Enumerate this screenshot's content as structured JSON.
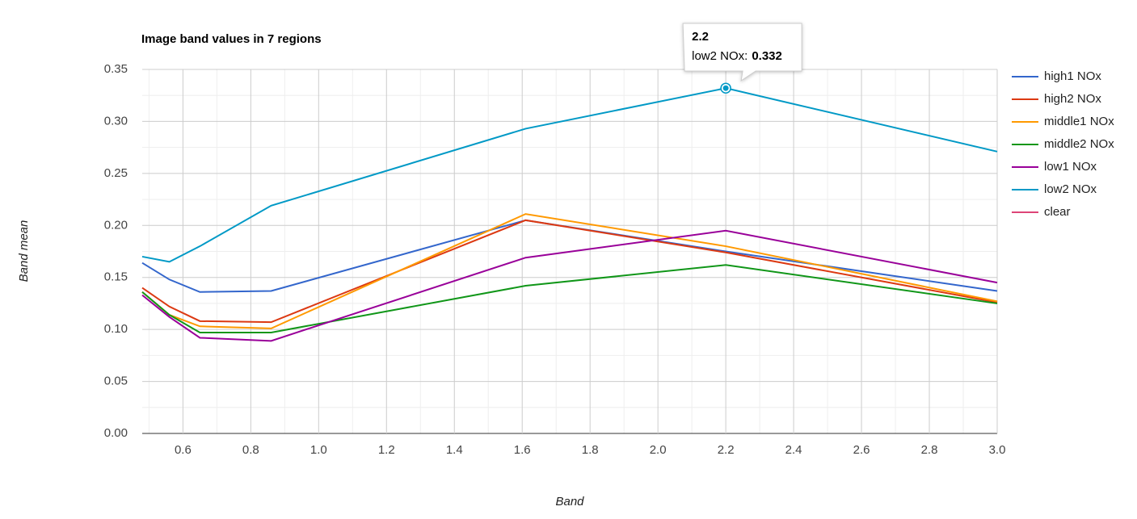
{
  "chart_data": {
    "type": "line",
    "title": "Image band values in 7 regions",
    "x_label": "Band",
    "y_label": "Band mean",
    "x": [
      0.48,
      0.56,
      0.65,
      0.86,
      1.61,
      2.2,
      3.0
    ],
    "series": [
      {
        "name": "high1 NOx",
        "color": "#3366cc",
        "values": [
          0.164,
          0.148,
          0.136,
          0.137,
          0.205,
          0.175,
          0.137
        ]
      },
      {
        "name": "high2 NOx",
        "color": "#dc3912",
        "values": [
          0.14,
          0.122,
          0.108,
          0.107,
          0.205,
          0.174,
          0.126
        ]
      },
      {
        "name": "middle1 NOx",
        "color": "#ff9900",
        "values": [
          0.136,
          0.114,
          0.103,
          0.101,
          0.211,
          0.18,
          0.127
        ]
      },
      {
        "name": "middle2 NOx",
        "color": "#109618",
        "values": [
          0.136,
          0.114,
          0.097,
          0.097,
          0.142,
          0.162,
          0.125
        ]
      },
      {
        "name": "low1 NOx",
        "color": "#990099",
        "values": [
          0.133,
          0.112,
          0.092,
          0.089,
          0.169,
          0.195,
          0.145
        ]
      },
      {
        "name": "low2 NOx",
        "color": "#0099c6",
        "values": [
          0.17,
          0.165,
          0.18,
          0.219,
          0.293,
          0.332,
          0.271
        ]
      },
      {
        "name": "clear",
        "color": "#dd4477",
        "values": [
          null,
          null,
          null,
          null,
          null,
          null,
          null
        ]
      }
    ],
    "xlim": [
      0.48,
      3.0
    ],
    "xticks": [
      0.6,
      0.8,
      {
        "value": 1,
        "label": "1.0"
      },
      1.2,
      1.4,
      1.6,
      1.8,
      {
        "value": 2,
        "label": "2.0"
      },
      2.2,
      2.4,
      2.6,
      2.8,
      {
        "value": 3,
        "label": "3.0"
      }
    ],
    "ylim": [
      0,
      0.35
    ],
    "yticks": [
      {
        "value": 0,
        "label": "0.00"
      },
      {
        "value": 0.05,
        "label": "0.05"
      },
      {
        "value": 0.1,
        "label": "0.10"
      },
      {
        "value": 0.15,
        "label": "0.15"
      },
      {
        "value": 0.2,
        "label": "0.20"
      },
      {
        "value": 0.25,
        "label": "0.25"
      },
      {
        "value": 0.3,
        "label": "0.30"
      },
      {
        "value": 0.35,
        "label": "0.35"
      }
    ],
    "grid": true,
    "minor_grid": true,
    "legend": "right",
    "tooltip": {
      "x": 2.2,
      "label": "low2 NOx:",
      "value": 0.332,
      "series": 5
    }
  }
}
